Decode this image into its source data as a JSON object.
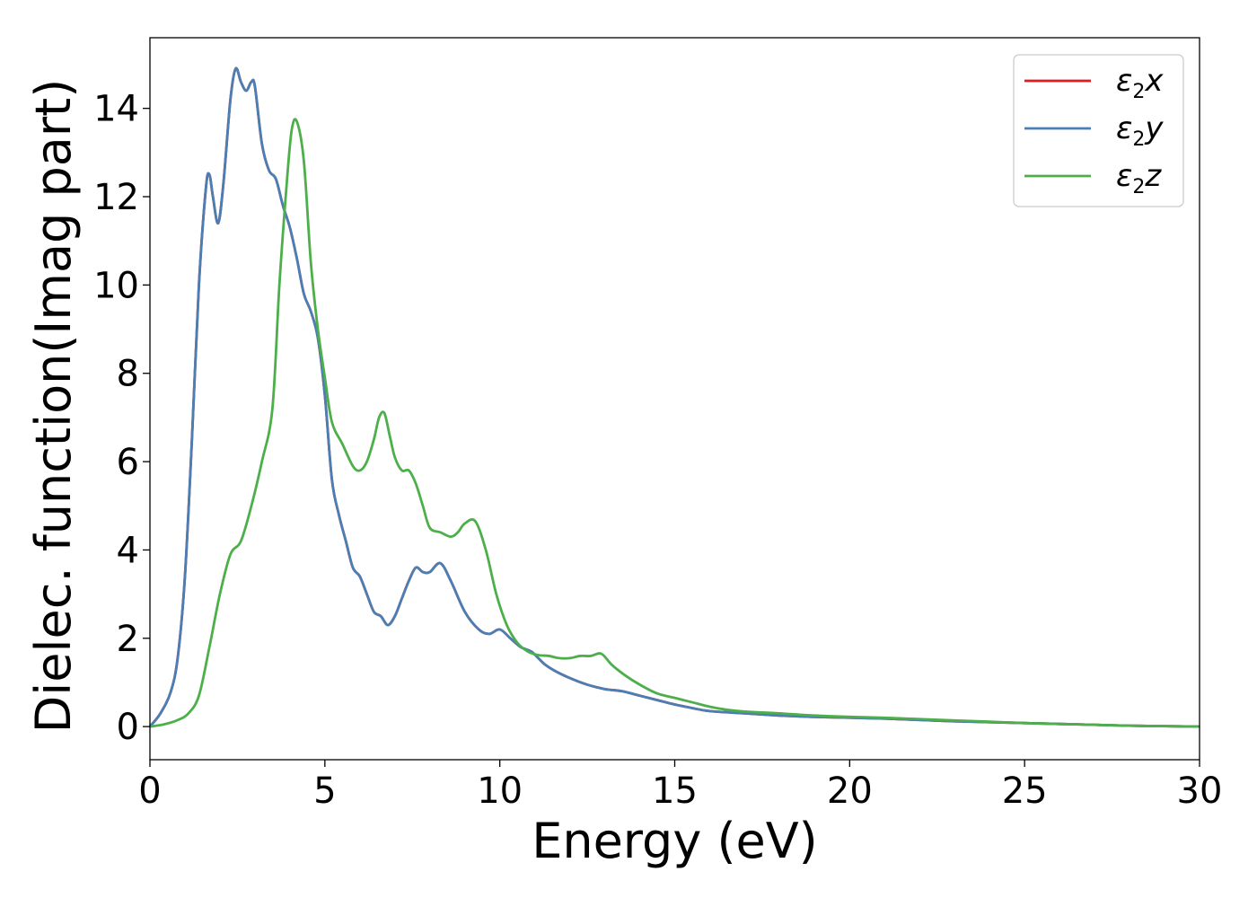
{
  "chart_data": {
    "type": "line",
    "title": "",
    "xlabel": "Energy (eV)",
    "ylabel": "Dielec. function(Imag part)",
    "xlim": [
      0,
      30
    ],
    "ylim": [
      -0.75,
      15.6
    ],
    "xticks": [
      "0",
      "5",
      "10",
      "15",
      "20",
      "25",
      "30"
    ],
    "yticks": [
      "0",
      "2",
      "4",
      "6",
      "8",
      "10",
      "12",
      "14"
    ],
    "grid": false,
    "legend_position": "top-right",
    "series": [
      {
        "name": "ε2x",
        "legend_symbol": "ε",
        "legend_subscript": "2",
        "legend_suffix": "x",
        "color": "#e41a1c",
        "x": [
          0,
          0.3,
          0.6,
          0.8,
          1.0,
          1.2,
          1.4,
          1.6,
          1.7,
          1.8,
          1.95,
          2.1,
          2.3,
          2.45,
          2.6,
          2.75,
          2.9,
          3.0,
          3.2,
          3.4,
          3.6,
          3.8,
          4.0,
          4.2,
          4.4,
          4.6,
          4.8,
          5.0,
          5.2,
          5.4,
          5.6,
          5.8,
          6.0,
          6.2,
          6.4,
          6.6,
          6.8,
          7.0,
          7.2,
          7.4,
          7.6,
          7.8,
          8.0,
          8.3,
          8.6,
          9.0,
          9.4,
          9.7,
          10.0,
          10.3,
          10.6,
          10.9,
          11.1,
          11.3,
          11.6,
          12.0,
          12.5,
          13.0,
          13.5,
          14.0,
          14.5,
          15.0,
          15.5,
          16.0,
          17.0,
          18.0,
          19.0,
          20.0,
          21.0,
          22.0,
          23.0,
          24.0,
          25.0,
          26.0,
          27.0,
          28.0,
          29.0,
          30.0
        ],
        "y": [
          0.0,
          0.3,
          0.8,
          1.6,
          3.4,
          6.5,
          10.0,
          12.2,
          12.5,
          12.0,
          11.4,
          12.3,
          14.2,
          14.9,
          14.6,
          14.4,
          14.6,
          14.5,
          13.2,
          12.6,
          12.4,
          11.8,
          11.3,
          10.6,
          9.8,
          9.4,
          8.8,
          7.5,
          5.6,
          4.8,
          4.2,
          3.6,
          3.4,
          3.0,
          2.6,
          2.5,
          2.3,
          2.5,
          2.9,
          3.3,
          3.6,
          3.5,
          3.5,
          3.7,
          3.3,
          2.6,
          2.2,
          2.1,
          2.2,
          2.0,
          1.8,
          1.7,
          1.55,
          1.4,
          1.25,
          1.1,
          0.95,
          0.85,
          0.8,
          0.7,
          0.6,
          0.5,
          0.42,
          0.35,
          0.3,
          0.25,
          0.22,
          0.2,
          0.18,
          0.15,
          0.12,
          0.1,
          0.08,
          0.06,
          0.04,
          0.02,
          0.01,
          0.0
        ]
      },
      {
        "name": "ε2y",
        "legend_symbol": "ε",
        "legend_subscript": "2",
        "legend_suffix": "y",
        "color": "#4a7fb5",
        "x": [
          0,
          0.3,
          0.6,
          0.8,
          1.0,
          1.2,
          1.4,
          1.6,
          1.7,
          1.8,
          1.95,
          2.1,
          2.3,
          2.45,
          2.6,
          2.75,
          2.9,
          3.0,
          3.2,
          3.4,
          3.6,
          3.8,
          4.0,
          4.2,
          4.4,
          4.6,
          4.8,
          5.0,
          5.2,
          5.4,
          5.6,
          5.8,
          6.0,
          6.2,
          6.4,
          6.6,
          6.8,
          7.0,
          7.2,
          7.4,
          7.6,
          7.8,
          8.0,
          8.3,
          8.6,
          9.0,
          9.4,
          9.7,
          10.0,
          10.3,
          10.6,
          10.9,
          11.1,
          11.3,
          11.6,
          12.0,
          12.5,
          13.0,
          13.5,
          14.0,
          14.5,
          15.0,
          15.5,
          16.0,
          17.0,
          18.0,
          19.0,
          20.0,
          21.0,
          22.0,
          23.0,
          24.0,
          25.0,
          26.0,
          27.0,
          28.0,
          29.0,
          30.0
        ],
        "y": [
          0.0,
          0.3,
          0.8,
          1.6,
          3.4,
          6.5,
          10.0,
          12.2,
          12.5,
          12.0,
          11.4,
          12.3,
          14.2,
          14.9,
          14.6,
          14.4,
          14.6,
          14.5,
          13.2,
          12.6,
          12.4,
          11.8,
          11.3,
          10.6,
          9.8,
          9.4,
          8.8,
          7.5,
          5.6,
          4.8,
          4.2,
          3.6,
          3.4,
          3.0,
          2.6,
          2.5,
          2.3,
          2.5,
          2.9,
          3.3,
          3.6,
          3.5,
          3.5,
          3.7,
          3.3,
          2.6,
          2.2,
          2.1,
          2.2,
          2.0,
          1.8,
          1.7,
          1.55,
          1.4,
          1.25,
          1.1,
          0.95,
          0.85,
          0.8,
          0.7,
          0.6,
          0.5,
          0.42,
          0.35,
          0.3,
          0.25,
          0.22,
          0.2,
          0.18,
          0.15,
          0.12,
          0.1,
          0.08,
          0.06,
          0.04,
          0.02,
          0.01,
          0.0
        ]
      },
      {
        "name": "ε2z",
        "legend_symbol": "ε",
        "legend_subscript": "2",
        "legend_suffix": "z",
        "color": "#4daf4a",
        "x": [
          0,
          0.4,
          0.8,
          1.1,
          1.4,
          1.7,
          2.0,
          2.3,
          2.6,
          2.9,
          3.2,
          3.5,
          3.7,
          3.9,
          4.05,
          4.2,
          4.4,
          4.6,
          4.8,
          5.0,
          5.2,
          5.5,
          5.8,
          6.0,
          6.2,
          6.4,
          6.55,
          6.7,
          6.85,
          7.0,
          7.2,
          7.4,
          7.6,
          7.8,
          8.0,
          8.3,
          8.6,
          8.8,
          9.0,
          9.3,
          9.6,
          9.9,
          10.2,
          10.5,
          10.8,
          11.1,
          11.4,
          11.7,
          12.0,
          12.3,
          12.6,
          12.9,
          13.2,
          13.6,
          14.0,
          14.5,
          15.0,
          15.5,
          16.0,
          16.5,
          17.0,
          17.5,
          18.0,
          19.0,
          20.0,
          21.0,
          22.0,
          23.0,
          24.0,
          25.0,
          26.0,
          27.0,
          28.0,
          29.0,
          30.0
        ],
        "y": [
          0.0,
          0.05,
          0.15,
          0.3,
          0.7,
          1.8,
          3.0,
          3.9,
          4.2,
          5.0,
          6.0,
          7.2,
          10.0,
          12.2,
          13.5,
          13.7,
          12.8,
          10.5,
          9.0,
          7.9,
          6.9,
          6.4,
          5.9,
          5.8,
          6.0,
          6.5,
          7.0,
          7.1,
          6.6,
          6.1,
          5.8,
          5.8,
          5.5,
          5.0,
          4.5,
          4.4,
          4.3,
          4.4,
          4.6,
          4.65,
          4.0,
          3.0,
          2.3,
          1.9,
          1.7,
          1.62,
          1.6,
          1.55,
          1.55,
          1.6,
          1.6,
          1.65,
          1.4,
          1.15,
          0.95,
          0.75,
          0.65,
          0.55,
          0.45,
          0.38,
          0.34,
          0.32,
          0.3,
          0.25,
          0.22,
          0.2,
          0.17,
          0.14,
          0.11,
          0.08,
          0.06,
          0.04,
          0.02,
          0.01,
          0.0
        ]
      }
    ]
  }
}
